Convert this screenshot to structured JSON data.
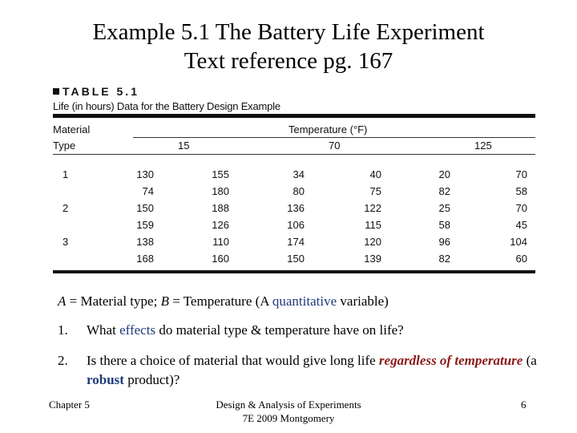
{
  "slide": {
    "title_line1": "Example 5.1 The Battery Life Experiment",
    "title_line2": "Text reference pg. 167"
  },
  "table": {
    "label": "TABLE 5.1",
    "caption": "Life (in hours) Data for the Battery Design Example",
    "col_header_material_1": "Material",
    "col_header_material_2": "Type",
    "col_header_temperature": "Temperature (°F)",
    "temps": [
      "15",
      "70",
      "125"
    ],
    "materials": [
      "1",
      "2",
      "3"
    ],
    "rows": [
      [
        "130",
        "155",
        "34",
        "40",
        "20",
        "70"
      ],
      [
        "74",
        "180",
        "80",
        "75",
        "82",
        "58"
      ],
      [
        "150",
        "188",
        "136",
        "122",
        "25",
        "70"
      ],
      [
        "159",
        "126",
        "106",
        "115",
        "58",
        "45"
      ],
      [
        "138",
        "110",
        "174",
        "120",
        "96",
        "104"
      ],
      [
        "168",
        "160",
        "150",
        "139",
        "82",
        "60"
      ]
    ]
  },
  "note": {
    "a_var": "A",
    "a_text": " = Material type; ",
    "b_var": "B",
    "b_text": " = Temperature (A ",
    "quant": "quantitative",
    "tail": " variable)"
  },
  "questions": [
    {
      "num": "1.",
      "p1": "What ",
      "hl": "effects",
      "p2": " do material type & temperature have on life?"
    },
    {
      "num": "2.",
      "p1": "Is there a choice of material that would give long life ",
      "hl": "regardless of temperature",
      "p2": " (a ",
      "hl2": "robust",
      "p3": " product)?"
    }
  ],
  "footer": {
    "left": "Chapter 5",
    "center_line1": "Design & Analysis of Experiments",
    "center_line2": "7E 2009 Montgomery",
    "right": "6"
  }
}
